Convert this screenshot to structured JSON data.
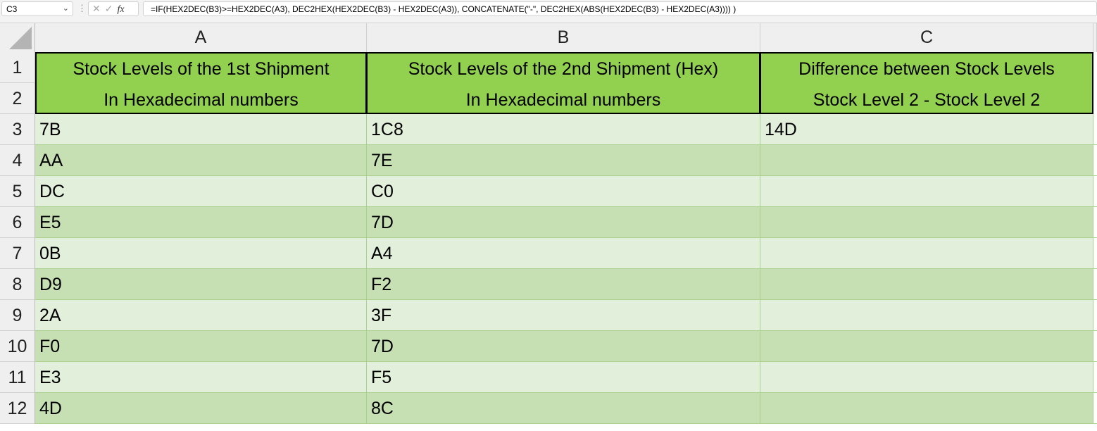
{
  "formula_bar": {
    "name_box": "C3",
    "formula": "=IF(HEX2DEC(B3)>=HEX2DEC(A3), DEC2HEX(HEX2DEC(B3) - HEX2DEC(A3)), CONCATENATE(\"-\", DEC2HEX(ABS(HEX2DEC(B3) - HEX2DEC(A3)))) )",
    "fx": "fx"
  },
  "columns": [
    "A",
    "B",
    "C"
  ],
  "row_numbers": [
    "1",
    "2",
    "3",
    "4",
    "5",
    "6",
    "7",
    "8",
    "9",
    "10",
    "11",
    "12"
  ],
  "headers": [
    {
      "line1": "Stock Levels of the 1st Shipment",
      "line2": "In Hexadecimal numbers"
    },
    {
      "line1": "Stock Levels of the 2nd Shipment (Hex)",
      "line2": "In Hexadecimal numbers"
    },
    {
      "line1": "Difference between Stock Levels",
      "line2": "Stock Level 2 - Stock Level 2"
    }
  ],
  "rows": [
    [
      "7B",
      "1C8",
      "14D"
    ],
    [
      "AA",
      "7E",
      ""
    ],
    [
      "DC",
      "C0",
      ""
    ],
    [
      "E5",
      "7D",
      ""
    ],
    [
      "0B",
      "A4",
      ""
    ],
    [
      "D9",
      "F2",
      ""
    ],
    [
      "2A",
      "3F",
      ""
    ],
    [
      "F0",
      "7D",
      ""
    ],
    [
      "E3",
      "F5",
      ""
    ],
    [
      "4D",
      "8C",
      ""
    ]
  ],
  "colors": {
    "header_fill": "#92d050",
    "row_light": "#e2efda",
    "row_dark": "#c6e0b4"
  }
}
